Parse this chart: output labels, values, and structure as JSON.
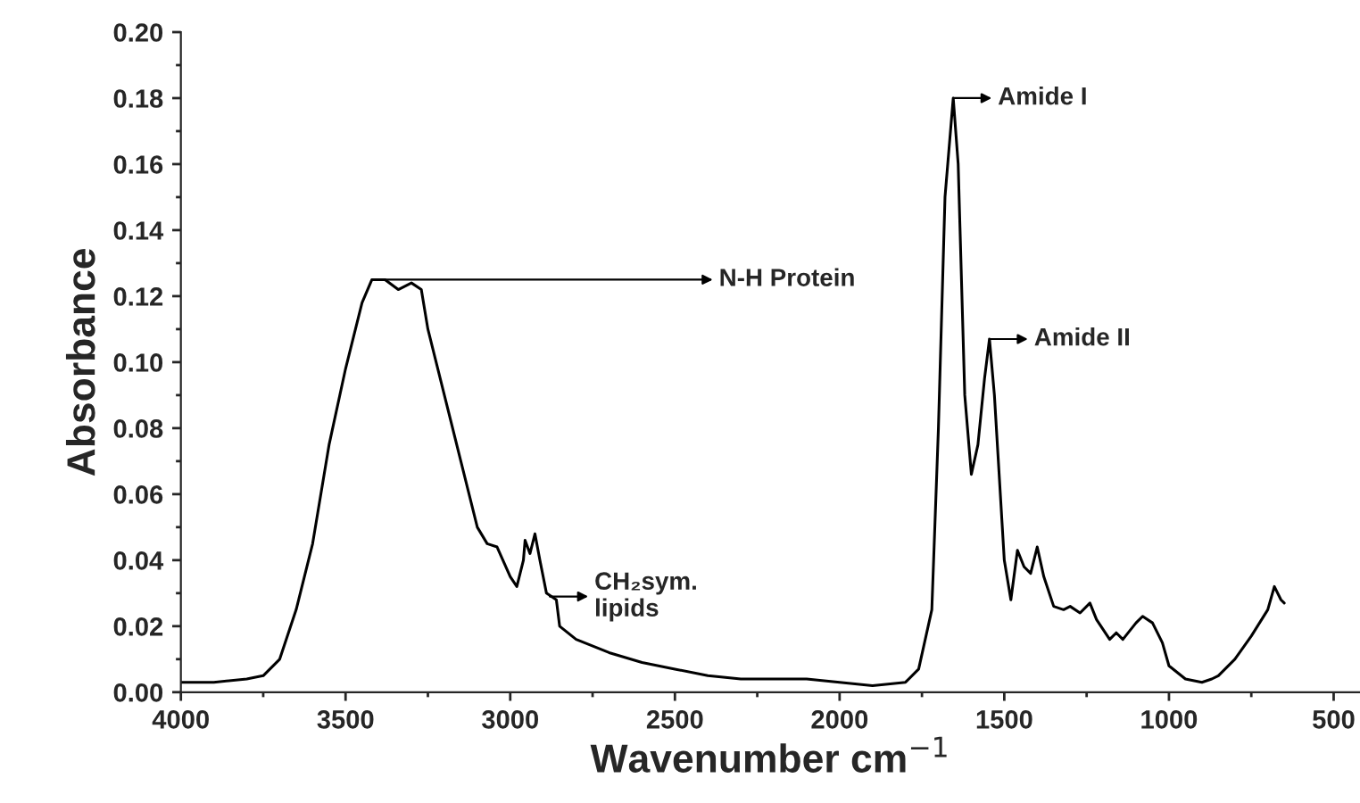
{
  "chart_data": {
    "type": "line",
    "xlabel": "Wavenumber cm$^{−1}$",
    "ylabel": "Absorbance",
    "xlim": [
      4000,
      420
    ],
    "xticks": [
      4000,
      3500,
      3000,
      2500,
      2000,
      1500,
      1000,
      500
    ],
    "ylim": [
      0,
      0.2
    ],
    "yticks": [
      {
        "value": 0,
        "label": "0.00"
      },
      {
        "value": 0.02,
        "label": "0.02"
      },
      {
        "value": 0.04,
        "label": "0.04"
      },
      {
        "value": 0.06,
        "label": "0.06"
      },
      {
        "value": 0.08,
        "label": "0.08"
      },
      {
        "value": 0.1,
        "label": "0.10"
      },
      {
        "value": 0.12,
        "label": "0.12"
      },
      {
        "value": 0.14,
        "label": "0.14"
      },
      {
        "value": 0.16,
        "label": "0.16"
      },
      {
        "value": 0.18,
        "label": "0.18"
      },
      {
        "value": 0.2,
        "label": "0.20"
      }
    ],
    "grid": false,
    "marker": "none",
    "line_style": "solid",
    "series": [
      {
        "color": "#000000",
        "x": [
          4000,
          3900,
          3800,
          3750,
          3700,
          3650,
          3600,
          3550,
          3500,
          3450,
          3420,
          3380,
          3340,
          3300,
          3270,
          3250,
          3200,
          3150,
          3100,
          3070,
          3040,
          3000,
          2980,
          2960,
          2955,
          2940,
          2925,
          2910,
          2890,
          2860,
          2850,
          2800,
          2700,
          2600,
          2500,
          2400,
          2300,
          2200,
          2100,
          2000,
          1900,
          1800,
          1760,
          1720,
          1700,
          1680,
          1655,
          1640,
          1620,
          1600,
          1580,
          1560,
          1545,
          1530,
          1500,
          1480,
          1460,
          1440,
          1420,
          1400,
          1380,
          1350,
          1320,
          1300,
          1270,
          1240,
          1220,
          1180,
          1160,
          1140,
          1100,
          1080,
          1050,
          1020,
          1000,
          950,
          900,
          870,
          850,
          800,
          750,
          700,
          680,
          660,
          650
        ],
        "values": [
          0.003,
          0.003,
          0.004,
          0.005,
          0.01,
          0.025,
          0.045,
          0.075,
          0.098,
          0.118,
          0.125,
          0.125,
          0.122,
          0.124,
          0.122,
          0.11,
          0.09,
          0.07,
          0.05,
          0.045,
          0.044,
          0.035,
          0.032,
          0.04,
          0.046,
          0.042,
          0.048,
          0.04,
          0.03,
          0.028,
          0.02,
          0.016,
          0.012,
          0.009,
          0.007,
          0.005,
          0.004,
          0.004,
          0.004,
          0.003,
          0.002,
          0.003,
          0.007,
          0.025,
          0.08,
          0.15,
          0.18,
          0.16,
          0.09,
          0.066,
          0.075,
          0.095,
          0.107,
          0.09,
          0.04,
          0.028,
          0.043,
          0.038,
          0.036,
          0.044,
          0.035,
          0.026,
          0.025,
          0.026,
          0.024,
          0.027,
          0.022,
          0.016,
          0.018,
          0.016,
          0.021,
          0.023,
          0.021,
          0.015,
          0.008,
          0.004,
          0.003,
          0.004,
          0.005,
          0.01,
          0.017,
          0.025,
          0.032,
          0.028,
          0.027
        ]
      }
    ],
    "annotations": [
      {
        "text": "N-H Protein",
        "x": 3420,
        "y": 0.125
      },
      {
        "text": "CH₂sym.\nlipids",
        "x": 2880,
        "y": 0.029
      },
      {
        "text": "Amide I",
        "x": 1655,
        "y": 0.18
      },
      {
        "text": "Amide II",
        "x": 1545,
        "y": 0.107
      }
    ]
  }
}
